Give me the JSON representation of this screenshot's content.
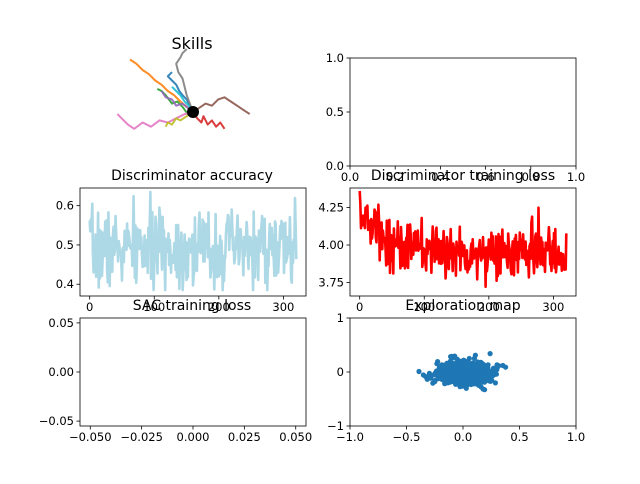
{
  "chart_data": [
    {
      "id": "skills",
      "type": "line",
      "title": "Skills",
      "axes_visible": false,
      "series": [
        {
          "color": "#1f77b4",
          "x": [
            0.0,
            -0.03,
            -0.06,
            -0.1,
            -0.13,
            -0.16,
            -0.2,
            -0.24,
            -0.2
          ],
          "y": [
            0.0,
            0.06,
            0.12,
            0.16,
            0.2,
            0.26,
            0.3,
            0.34,
            0.38
          ]
        },
        {
          "color": "#ff7f0e",
          "x": [
            0.0,
            -0.06,
            -0.12,
            -0.18,
            -0.24,
            -0.3,
            -0.36,
            -0.42,
            -0.48,
            -0.54,
            -0.6
          ],
          "y": [
            0.0,
            0.05,
            0.1,
            0.16,
            0.2,
            0.26,
            0.3,
            0.36,
            0.4,
            0.46,
            0.5
          ]
        },
        {
          "color": "#2ca02c",
          "x": [
            0.0,
            -0.05,
            -0.1,
            -0.15,
            -0.2,
            -0.26,
            -0.3,
            -0.34
          ],
          "y": [
            0.0,
            -0.02,
            0.05,
            0.1,
            0.08,
            0.16,
            0.2,
            0.22
          ]
        },
        {
          "color": "#d62728",
          "x": [
            0.0,
            0.04,
            0.08,
            0.1,
            0.14,
            0.18,
            0.22,
            0.26,
            0.3
          ],
          "y": [
            0.0,
            -0.06,
            -0.1,
            -0.04,
            -0.12,
            -0.08,
            -0.14,
            -0.1,
            -0.16
          ]
        },
        {
          "color": "#9467bd",
          "x": [
            0.0,
            -0.05,
            -0.1,
            -0.16,
            -0.2,
            -0.26,
            -0.3
          ],
          "y": [
            0.0,
            0.04,
            0.08,
            0.06,
            0.12,
            0.14,
            0.2
          ]
        },
        {
          "color": "#8c564b",
          "x": [
            0.0,
            0.06,
            0.12,
            0.18,
            0.24,
            0.3,
            0.36,
            0.42,
            0.48,
            0.54
          ],
          "y": [
            0.0,
            0.04,
            0.08,
            0.06,
            0.12,
            0.14,
            0.1,
            0.06,
            0.02,
            -0.02
          ]
        },
        {
          "color": "#e377c2",
          "x": [
            0.0,
            -0.08,
            -0.16,
            -0.24,
            -0.32,
            -0.4,
            -0.48,
            -0.56,
            -0.62,
            -0.68,
            -0.72
          ],
          "y": [
            0.0,
            -0.02,
            -0.06,
            -0.1,
            -0.08,
            -0.14,
            -0.1,
            -0.16,
            -0.12,
            -0.06,
            -0.02
          ]
        },
        {
          "color": "#7f7f7f",
          "x": [
            0.0,
            -0.03,
            -0.06,
            -0.08,
            -0.1,
            -0.14,
            -0.16,
            -0.12,
            -0.1,
            -0.06
          ],
          "y": [
            0.0,
            0.08,
            0.16,
            0.24,
            0.32,
            0.38,
            0.46,
            0.52,
            0.56,
            0.6
          ]
        },
        {
          "color": "#bcbd22",
          "x": [
            0.0,
            -0.06,
            -0.12,
            -0.16,
            -0.2,
            -0.24,
            -0.26
          ],
          "y": [
            0.0,
            -0.04,
            -0.08,
            -0.06,
            -0.12,
            -0.1,
            -0.14
          ]
        },
        {
          "color": "#17becf",
          "x": [
            0.0,
            -0.04,
            -0.08,
            -0.12,
            -0.16,
            -0.2
          ],
          "y": [
            0.0,
            0.06,
            0.1,
            0.16,
            0.2,
            0.24
          ]
        }
      ],
      "start_point": {
        "x": 0,
        "y": 0,
        "color": "#000000"
      }
    },
    {
      "id": "empty",
      "type": "line",
      "title": "",
      "xlim": [
        0,
        1
      ],
      "ylim": [
        0,
        1
      ],
      "xticks": [
        "0.0",
        "0.2",
        "0.4",
        "0.6",
        "0.8",
        "1.0"
      ],
      "yticks": [
        "0.0",
        "0.5",
        "1.0"
      ],
      "series": []
    },
    {
      "id": "disc_acc",
      "type": "line",
      "title": "Discriminator accuracy",
      "xlim": [
        -15,
        335
      ],
      "ylim": [
        0.37,
        0.645
      ],
      "xticks": [
        "0",
        "100",
        "200",
        "300"
      ],
      "yticks": [
        "0.4",
        "0.5",
        "0.6"
      ],
      "series": [
        {
          "color": "#add8e6",
          "n": 321,
          "mean": 0.49,
          "amp": 0.05,
          "min": 0.385,
          "max": 0.635,
          "seed": 7
        }
      ]
    },
    {
      "id": "disc_loss",
      "type": "line",
      "title": "Discriminator training loss",
      "xlim": [
        -15,
        335
      ],
      "ylim": [
        3.66,
        4.38
      ],
      "xticks": [
        "0",
        "100",
        "200",
        "300"
      ],
      "yticks": [
        "3.75",
        "4.00",
        "4.25"
      ],
      "series": [
        {
          "color": "#ff0000",
          "n": 321,
          "start": 4.25,
          "end": 3.95,
          "amp": 0.09,
          "min": 3.7,
          "max": 4.36,
          "seed": 13
        }
      ]
    },
    {
      "id": "sac_loss",
      "type": "line",
      "title": "SAC training loss",
      "xlim": [
        -0.055,
        0.055
      ],
      "ylim": [
        -0.055,
        0.055
      ],
      "xticks": [
        "−0.050",
        "−0.025",
        "0.000",
        "0.025",
        "0.050"
      ],
      "xtick_values": [
        -0.05,
        -0.025,
        0,
        0.025,
        0.05
      ],
      "yticks": [
        "−0.05",
        "0.00",
        "0.05"
      ],
      "ytick_values": [
        -0.05,
        0,
        0.05
      ],
      "series": []
    },
    {
      "id": "exploration",
      "type": "scatter",
      "title": "Exploration map",
      "xlim": [
        -1,
        1
      ],
      "ylim": [
        -1,
        1
      ],
      "xticks": [
        "−1.0",
        "−0.5",
        "0.0",
        "0.5",
        "1.0"
      ],
      "xtick_values": [
        -1,
        -0.5,
        0,
        0.5,
        1
      ],
      "yticks": [
        "−1",
        "0",
        "1"
      ],
      "ytick_values": [
        -1,
        0,
        1
      ],
      "series": [
        {
          "color": "#1f77b4",
          "n": 900,
          "cx": 0.02,
          "cy": -0.02,
          "sx": 0.12,
          "sy": 0.1,
          "seed": 21
        }
      ]
    }
  ]
}
